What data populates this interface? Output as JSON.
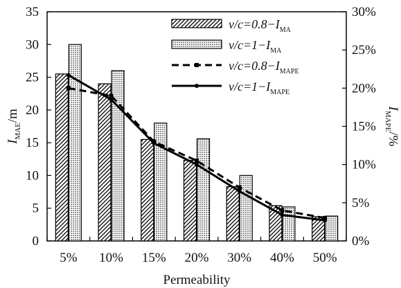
{
  "chart_data": {
    "type": "bar",
    "categories": [
      "5%",
      "10%",
      "15%",
      "20%",
      "30%",
      "40%",
      "50%"
    ],
    "series": [
      {
        "name": "v/c=0.8−I_MA",
        "kind": "bar",
        "axis": "left",
        "pattern": "hatch",
        "values": [
          25.5,
          24.0,
          15.5,
          12.3,
          8.3,
          5.4,
          3.7
        ]
      },
      {
        "name": "v/c=1−I_MA",
        "kind": "bar",
        "axis": "left",
        "pattern": "dots",
        "values": [
          30.0,
          26.0,
          18.0,
          15.6,
          10.0,
          5.2,
          3.8
        ]
      },
      {
        "name": "v/c=0.8−I_MAPE",
        "kind": "line",
        "axis": "right",
        "style": "dashed",
        "marker": "square",
        "values": [
          20.0,
          19.0,
          13.0,
          10.5,
          7.0,
          4.0,
          3.0
        ]
      },
      {
        "name": "v/c=1−I_MAPE",
        "kind": "line",
        "axis": "right",
        "style": "solid",
        "marker": "circle",
        "values": [
          21.7,
          18.5,
          12.8,
          10.0,
          6.5,
          3.4,
          2.7
        ]
      }
    ],
    "xlabel": "Permeability",
    "ylabel": "I_MAE/m",
    "y2label": "I_MAPE/%",
    "ylim": [
      0,
      35
    ],
    "y2lim": [
      0,
      30
    ],
    "yticks": [
      "0",
      "5",
      "10",
      "15",
      "20",
      "25",
      "30",
      "35"
    ],
    "y2ticks": [
      "0%",
      "5%",
      "10%",
      "15%",
      "20%",
      "25%",
      "30%"
    ],
    "legend_position": "top-right",
    "grid": false
  }
}
